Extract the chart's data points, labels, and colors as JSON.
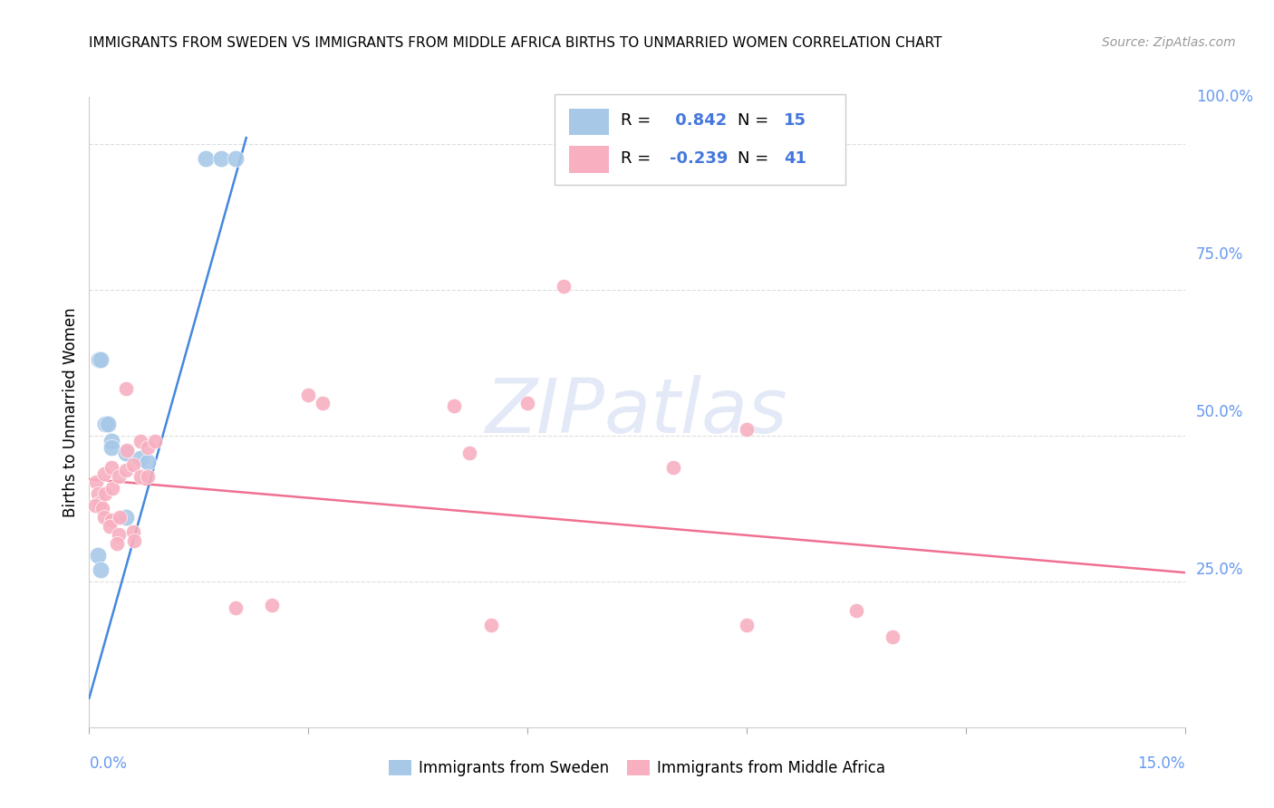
{
  "title": "IMMIGRANTS FROM SWEDEN VS IMMIGRANTS FROM MIDDLE AFRICA BIRTHS TO UNMARRIED WOMEN CORRELATION CHART",
  "source": "Source: ZipAtlas.com",
  "ylabel": "Births to Unmarried Women",
  "ylabel_right_ticks": [
    "100.0%",
    "75.0%",
    "50.0%",
    "25.0%"
  ],
  "ylabel_right_vals": [
    1.0,
    0.75,
    0.5,
    0.25
  ],
  "xlim": [
    0.0,
    0.15
  ],
  "ylim": [
    0.0,
    1.08
  ],
  "sweden_color": "#a8c8e8",
  "sweden_line_color": "#4488dd",
  "middle_africa_color": "#f8b0c0",
  "middle_africa_line_color": "#f07090",
  "sweden_R": 0.842,
  "sweden_N": 15,
  "middle_africa_R": -0.239,
  "middle_africa_N": 41,
  "watermark": "ZIPatlas",
  "sweden_points": [
    [
      0.0013,
      0.63
    ],
    [
      0.0016,
      0.63
    ],
    [
      0.0022,
      0.52
    ],
    [
      0.0025,
      0.52
    ],
    [
      0.003,
      0.49
    ],
    [
      0.003,
      0.48
    ],
    [
      0.005,
      0.47
    ],
    [
      0.005,
      0.36
    ],
    [
      0.007,
      0.46
    ],
    [
      0.008,
      0.455
    ],
    [
      0.016,
      0.975
    ],
    [
      0.018,
      0.975
    ],
    [
      0.02,
      0.975
    ],
    [
      0.0012,
      0.295
    ],
    [
      0.0015,
      0.27
    ]
  ],
  "middle_africa_points": [
    [
      0.001,
      0.42
    ],
    [
      0.0012,
      0.4
    ],
    [
      0.0014,
      0.385
    ],
    [
      0.0008,
      0.38
    ],
    [
      0.002,
      0.435
    ],
    [
      0.0022,
      0.4
    ],
    [
      0.0018,
      0.375
    ],
    [
      0.002,
      0.36
    ],
    [
      0.003,
      0.445
    ],
    [
      0.0032,
      0.41
    ],
    [
      0.003,
      0.355
    ],
    [
      0.0028,
      0.345
    ],
    [
      0.004,
      0.43
    ],
    [
      0.0042,
      0.36
    ],
    [
      0.004,
      0.33
    ],
    [
      0.0038,
      0.315
    ],
    [
      0.005,
      0.58
    ],
    [
      0.0052,
      0.475
    ],
    [
      0.005,
      0.44
    ],
    [
      0.006,
      0.45
    ],
    [
      0.006,
      0.335
    ],
    [
      0.0062,
      0.32
    ],
    [
      0.007,
      0.49
    ],
    [
      0.007,
      0.43
    ],
    [
      0.008,
      0.48
    ],
    [
      0.008,
      0.43
    ],
    [
      0.009,
      0.49
    ],
    [
      0.03,
      0.57
    ],
    [
      0.032,
      0.555
    ],
    [
      0.05,
      0.55
    ],
    [
      0.052,
      0.47
    ],
    [
      0.06,
      0.555
    ],
    [
      0.08,
      0.445
    ],
    [
      0.09,
      0.51
    ],
    [
      0.02,
      0.205
    ],
    [
      0.025,
      0.21
    ],
    [
      0.055,
      0.175
    ],
    [
      0.065,
      0.755
    ],
    [
      0.09,
      0.175
    ],
    [
      0.105,
      0.2
    ],
    [
      0.11,
      0.155
    ]
  ],
  "sweden_line_x": [
    0.0,
    0.0215
  ],
  "sweden_line_y": [
    0.05,
    1.01
  ],
  "middle_africa_line_x": [
    0.0,
    0.15
  ],
  "middle_africa_line_y": [
    0.425,
    0.265
  ]
}
